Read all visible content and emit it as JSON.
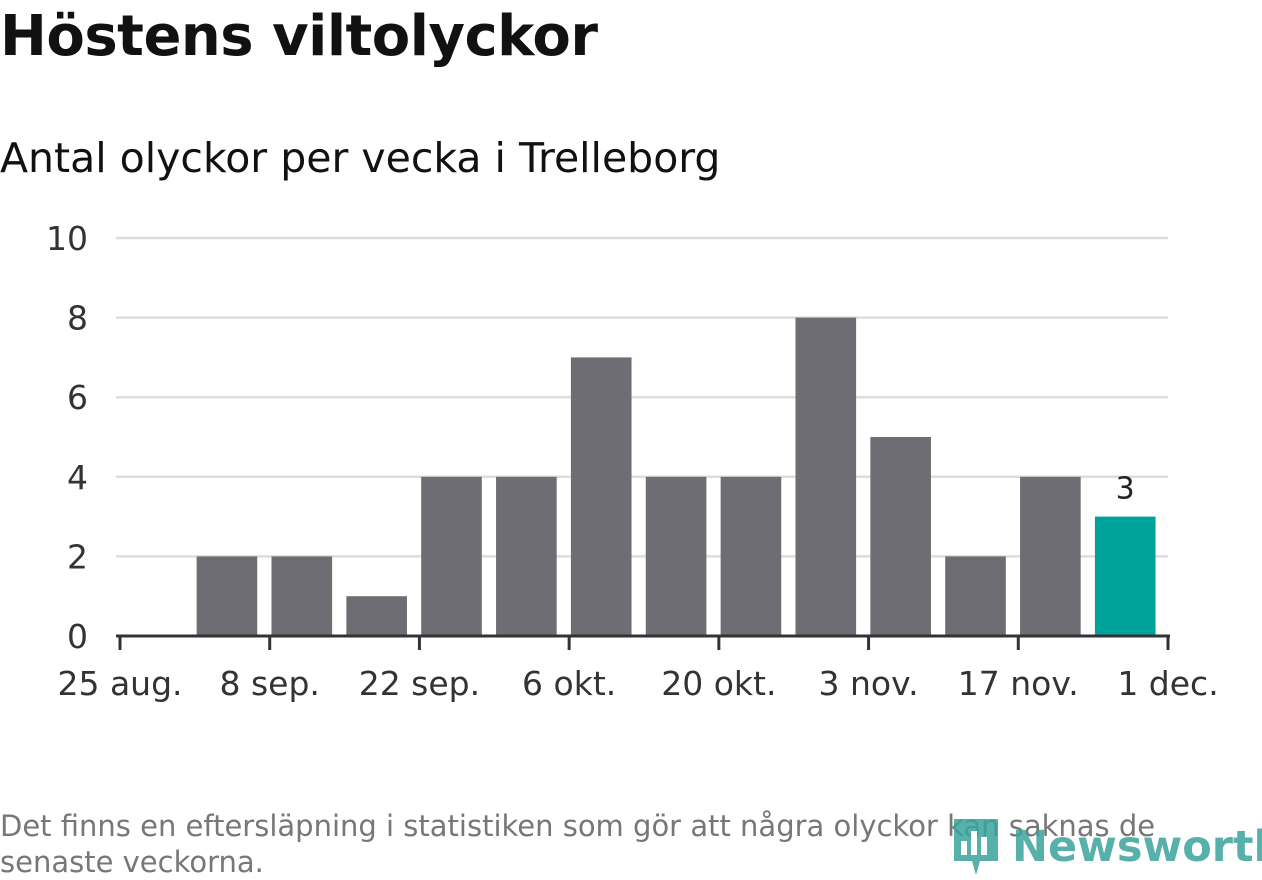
{
  "chart_data": {
    "type": "bar",
    "title": "Höstens viltolyckor",
    "subtitle": "Antal olyckor per vecka i Trelleborg",
    "xlabel": "",
    "ylabel": "",
    "x_start": "2024-08-25",
    "x_end": "2024-12-01",
    "categories": [
      "2024-09-01",
      "2024-09-08",
      "2024-09-15",
      "2024-09-22",
      "2024-09-29",
      "2024-10-06",
      "2024-10-13",
      "2024-10-20",
      "2024-10-27",
      "2024-11-03",
      "2024-11-10",
      "2024-11-17",
      "2024-11-24"
    ],
    "values": [
      2,
      2,
      1,
      4,
      4,
      7,
      4,
      4,
      8,
      5,
      2,
      4,
      3
    ],
    "highlight_index": 12,
    "data_labels": [
      {
        "index": 12,
        "text": "3"
      }
    ],
    "ylim": [
      0,
      10
    ],
    "y_ticks": [
      0,
      2,
      4,
      6,
      8,
      10
    ],
    "x_ticks": [
      {
        "date": "2024-08-25",
        "label": "25 aug."
      },
      {
        "date": "2024-09-08",
        "label": "8 sep."
      },
      {
        "date": "2024-09-22",
        "label": "22 sep."
      },
      {
        "date": "2024-10-06",
        "label": "6 okt."
      },
      {
        "date": "2024-10-20",
        "label": "20 okt."
      },
      {
        "date": "2024-11-03",
        "label": "3 nov."
      },
      {
        "date": "2024-11-17",
        "label": "17 nov."
      },
      {
        "date": "2024-12-01",
        "label": "1 dec."
      }
    ],
    "grid": true,
    "colors": {
      "bar": "#6e6d73",
      "highlight": "#00a39a",
      "grid": "#dddddd",
      "axis": "#333333"
    }
  },
  "footnote": "Det finns en eftersläpning i statistiken som gör att några olyckor kan saknas de senaste veckorna.",
  "logo": {
    "text": "Newsworthy",
    "icon": "bar-chart-pin-icon",
    "color": "#3aa39c"
  }
}
